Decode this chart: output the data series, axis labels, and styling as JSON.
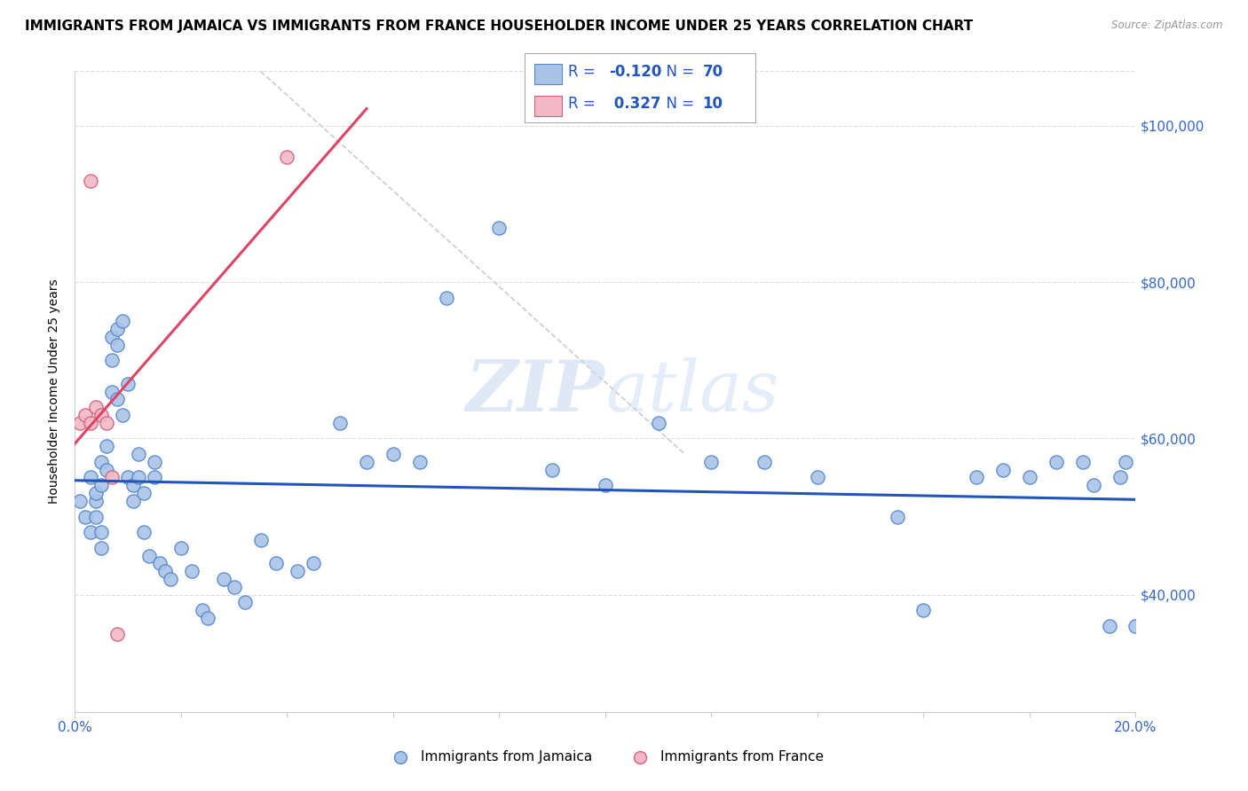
{
  "title": "IMMIGRANTS FROM JAMAICA VS IMMIGRANTS FROM FRANCE HOUSEHOLDER INCOME UNDER 25 YEARS CORRELATION CHART",
  "source": "Source: ZipAtlas.com",
  "ylabel": "Householder Income Under 25 years",
  "xlim": [
    0.0,
    0.2
  ],
  "ylim": [
    25000,
    107000
  ],
  "jamaica_x": [
    0.001,
    0.002,
    0.003,
    0.003,
    0.004,
    0.004,
    0.004,
    0.005,
    0.005,
    0.005,
    0.005,
    0.006,
    0.006,
    0.007,
    0.007,
    0.007,
    0.008,
    0.008,
    0.008,
    0.009,
    0.009,
    0.01,
    0.01,
    0.011,
    0.011,
    0.012,
    0.012,
    0.013,
    0.013,
    0.014,
    0.015,
    0.015,
    0.016,
    0.017,
    0.018,
    0.02,
    0.022,
    0.024,
    0.025,
    0.028,
    0.03,
    0.032,
    0.035,
    0.038,
    0.042,
    0.045,
    0.05,
    0.055,
    0.06,
    0.065,
    0.07,
    0.08,
    0.09,
    0.1,
    0.11,
    0.12,
    0.13,
    0.14,
    0.155,
    0.16,
    0.17,
    0.175,
    0.18,
    0.185,
    0.19,
    0.192,
    0.195,
    0.197,
    0.198,
    0.2
  ],
  "jamaica_y": [
    52000,
    50000,
    48000,
    55000,
    52000,
    53000,
    50000,
    48000,
    57000,
    54000,
    46000,
    59000,
    56000,
    73000,
    70000,
    66000,
    74000,
    72000,
    65000,
    63000,
    75000,
    67000,
    55000,
    54000,
    52000,
    58000,
    55000,
    53000,
    48000,
    45000,
    57000,
    55000,
    44000,
    43000,
    42000,
    46000,
    43000,
    38000,
    37000,
    42000,
    41000,
    39000,
    47000,
    44000,
    43000,
    44000,
    62000,
    57000,
    58000,
    57000,
    78000,
    87000,
    56000,
    54000,
    62000,
    57000,
    57000,
    55000,
    50000,
    38000,
    55000,
    56000,
    55000,
    57000,
    57000,
    54000,
    36000,
    55000,
    57000,
    36000
  ],
  "france_x": [
    0.001,
    0.002,
    0.003,
    0.003,
    0.004,
    0.005,
    0.006,
    0.007,
    0.008,
    0.04
  ],
  "france_y": [
    62000,
    63000,
    93000,
    62000,
    64000,
    63000,
    62000,
    55000,
    35000,
    96000
  ],
  "jamaica_color": "#aac4e8",
  "france_color": "#f2b8c6",
  "jamaica_edge": "#5588cc",
  "france_edge": "#d06080",
  "blue_line_color": "#2255bb",
  "pink_line_color": "#dd4466",
  "diag_line_color": "#cccccc",
  "r_value_color": "#2255bb",
  "n_value_color": "#2255bb",
  "tick_label_color": "#3366cc",
  "grid_color": "#dddddd",
  "watermark_color": "#c5d8f0",
  "title_fontsize": 11,
  "ylabel_fontsize": 10,
  "legend_r_jamaica": "-0.120",
  "legend_n_jamaica": "70",
  "legend_r_france": "0.327",
  "legend_n_france": "10"
}
